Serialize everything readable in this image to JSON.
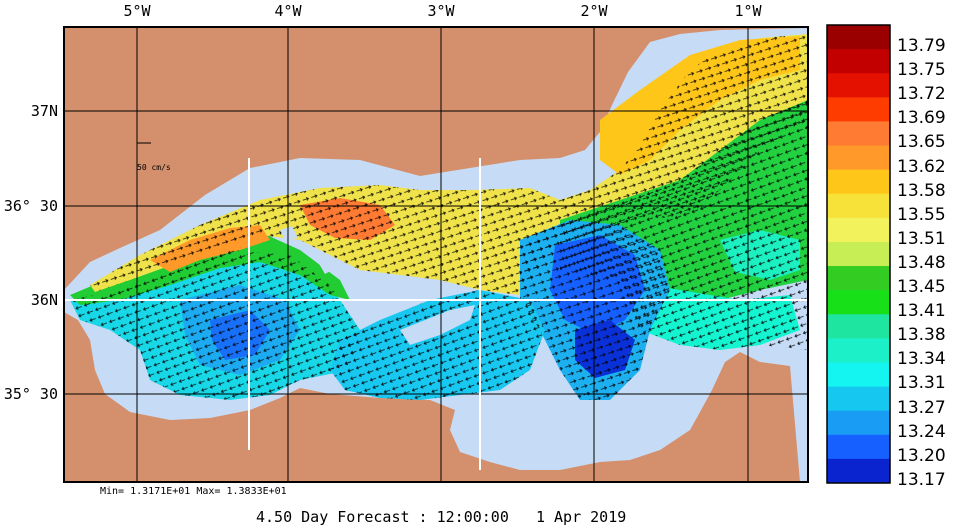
{
  "top_axis": [
    "5°W",
    "4°W",
    "3°W",
    "2°W",
    "1°W"
  ],
  "left_axis": [
    "37N",
    "36° 30",
    "36N",
    "35° 30"
  ],
  "scale_label": "50 cm/s",
  "legend": {
    "values": [
      "13.79",
      "13.75",
      "13.72",
      "13.69",
      "13.65",
      "13.62",
      "13.58",
      "13.55",
      "13.51",
      "13.48",
      "13.45",
      "13.41",
      "13.38",
      "13.34",
      "13.31",
      "13.27",
      "13.24",
      "13.20",
      "13.17"
    ],
    "colors": [
      "#9a0000",
      "#c20000",
      "#e41000",
      "#ff3c00",
      "#ff7a32",
      "#ff9a2a",
      "#ffc61a",
      "#f7e23a",
      "#f2f25c",
      "#c8ee55",
      "#32cc22",
      "#18e018",
      "#1ee6a0",
      "#1cf0c8",
      "#14f4f0",
      "#16c8f0",
      "#189cf4",
      "#1660ff",
      "#0a24d0"
    ]
  },
  "stats": {
    "min_label": "Min=",
    "min_value": "1.3171E+01",
    "max_label": "Max=",
    "max_value": "1.3833E+01"
  },
  "forecast": {
    "text": "4.50 Day Forecast : 12:00:00",
    "date": "1 Apr 2019"
  },
  "colors": {
    "land": "#d4906c",
    "shallow_water": "#c6dcf6",
    "frame": "#000000"
  }
}
